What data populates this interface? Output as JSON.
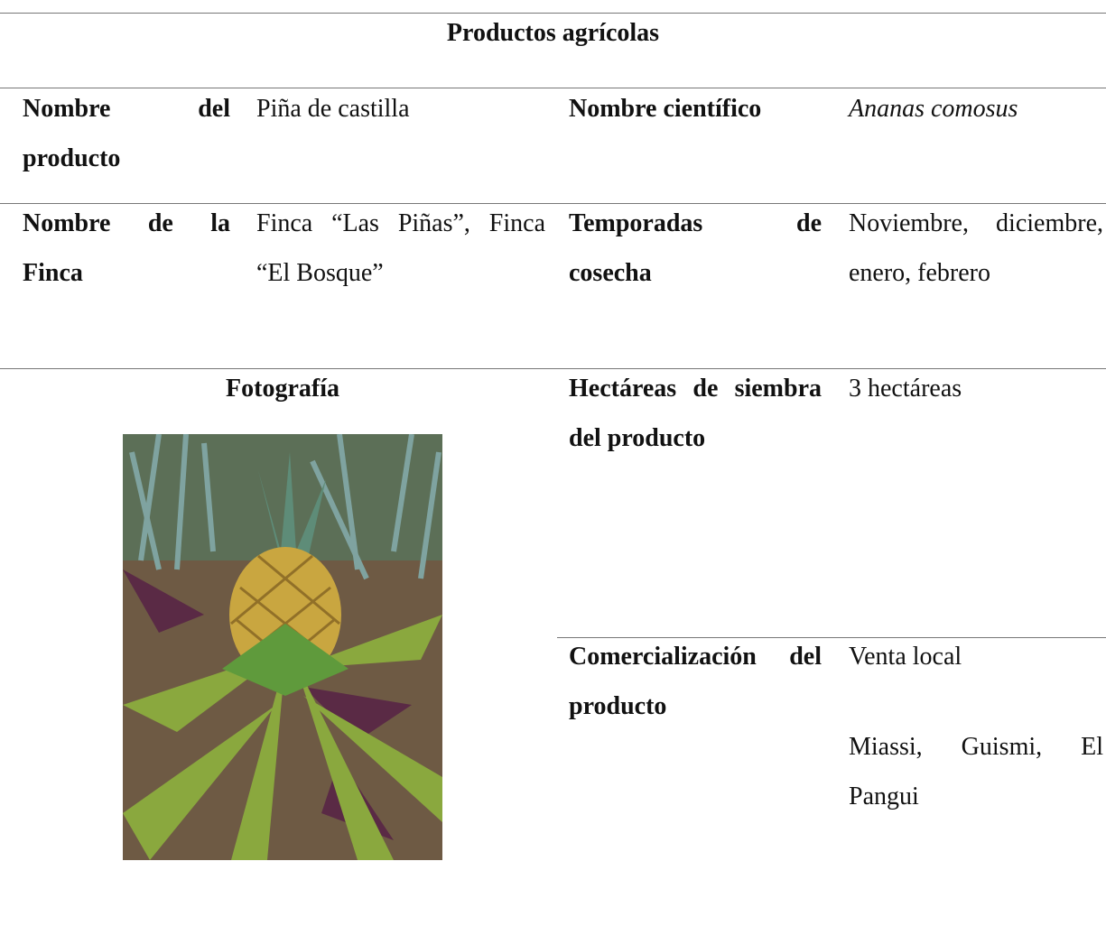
{
  "header": {
    "title": "Productos agrícolas"
  },
  "table": {
    "rows": [
      [
        "Nombre del producto",
        "Piña de castilla",
        "Nombre científico",
        "Ananas comosus"
      ],
      [
        "Nombre de la Finca",
        "Finca “Las Piñas”, Finca “El Bosque”",
        "Temporadas de cosecha",
        "Noviembre, diciembre, enero, febrero"
      ],
      [
        "Fotografía",
        "Hectáreas de siembra del producto",
        "3 hectáreas"
      ],
      [
        "Comercialización del producto",
        [
          "Venta local",
          "Miassi, Guismi, El Pangui"
        ]
      ]
    ]
  }
}
